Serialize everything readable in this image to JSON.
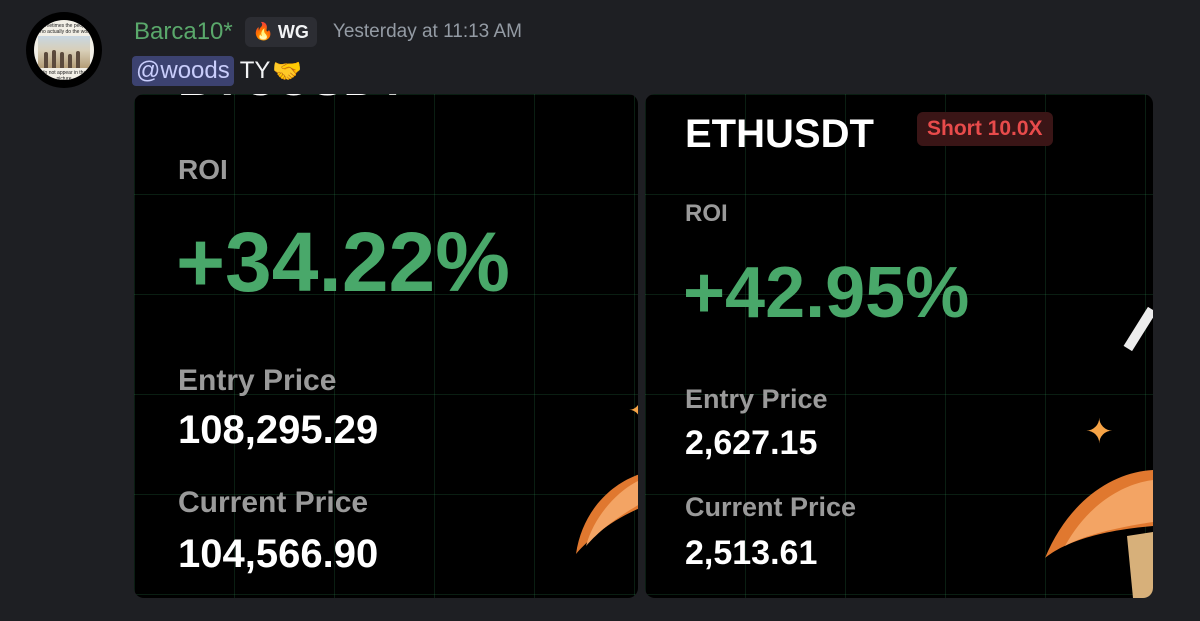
{
  "message": {
    "username": "Barca10*",
    "tag": {
      "icon": "fire-emoji-icon",
      "label": "WG"
    },
    "timestamp": "Yesterday at 11:13 AM",
    "mention": "@woods",
    "text": "TY",
    "reaction_icon": "handshake-icon",
    "avatar": {
      "caption_top": "Sometimes the people who actually do the work",
      "caption_bottom": "do not appear in the picture"
    }
  },
  "cards": [
    {
      "pair": "BTCUSDT",
      "badge": "",
      "roi_label": "ROI",
      "roi": "+34.22%",
      "entry_label": "Entry Price",
      "entry": "108,295.29",
      "current_label": "Current Price",
      "current": "104,566.90"
    },
    {
      "pair": "ETHUSDT",
      "badge": "Short 10.0X",
      "roi_label": "ROI",
      "roi": "+42.95%",
      "entry_label": "Entry Price",
      "entry": "2,627.15",
      "current_label": "Current Price",
      "current": "2,513.61"
    }
  ],
  "colors": {
    "username": "#5aa86b",
    "roi": "#49a86a",
    "badge": "#e84b4b",
    "mention_bg": "#3c4270"
  }
}
